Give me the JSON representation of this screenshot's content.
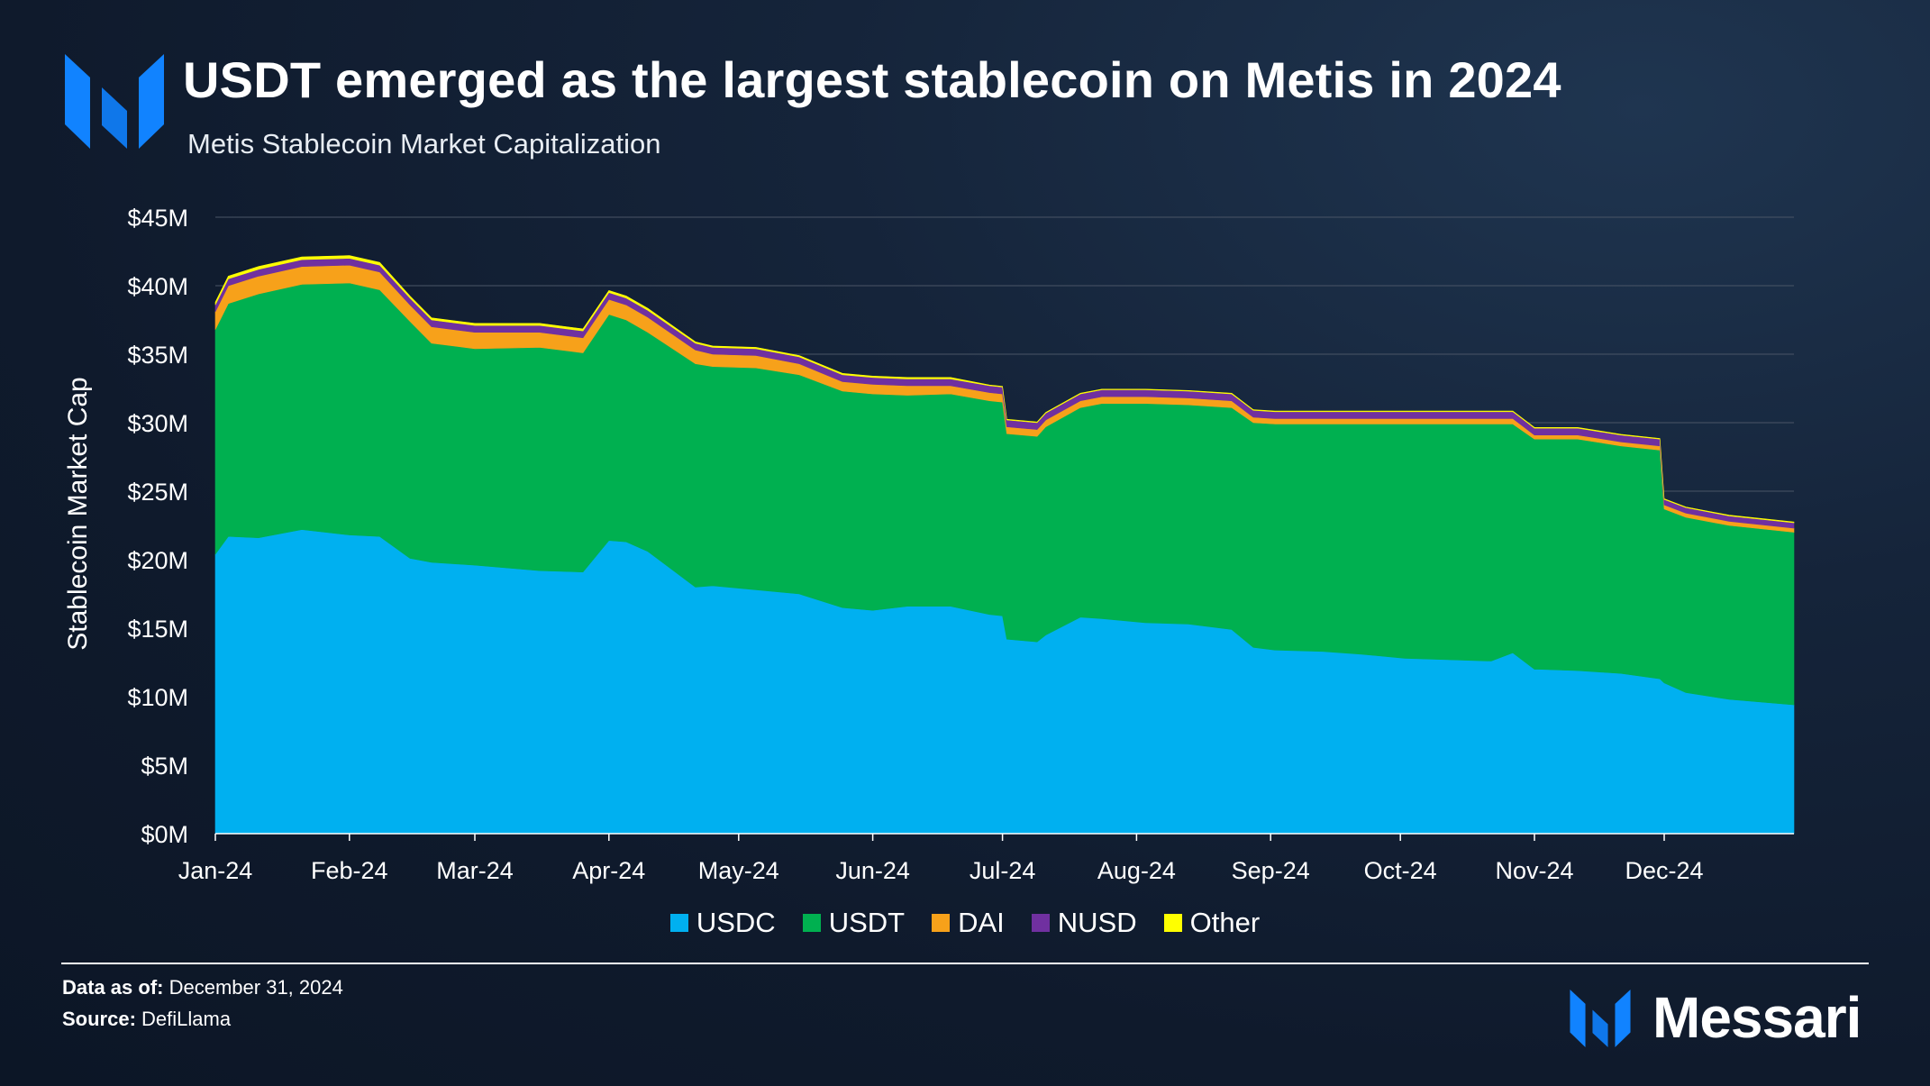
{
  "header": {
    "title": "USDT emerged as the largest stablecoin on Metis in 2024",
    "subtitle": "Metis Stablecoin Market Capitalization",
    "logo_icon": "messari-m-icon"
  },
  "footer": {
    "data_as_of_label": "Data as of:",
    "data_as_of_value": "December 31, 2024",
    "source_label": "Source:",
    "source_value": "DefiLlama",
    "brand": "Messari"
  },
  "chart_data": {
    "type": "area",
    "stacked": true,
    "title": "Metis Stablecoin Market Capitalization",
    "ylabel": "Stablecoin Market Cap",
    "xlabel": "",
    "ylim": [
      0,
      45
    ],
    "y_unit": "$M",
    "y_ticks": [
      "$0M",
      "$5M",
      "$10M",
      "$15M",
      "$20M",
      "$25M",
      "$30M",
      "$35M",
      "$40M",
      "$45M"
    ],
    "x_ticks": [
      "Jan-24",
      "Feb-24",
      "Mar-24",
      "Apr-24",
      "May-24",
      "Jun-24",
      "Jul-24",
      "Aug-24",
      "Sep-24",
      "Oct-24",
      "Nov-24",
      "Dec-24"
    ],
    "grid": true,
    "legend_position": "bottom-center",
    "x_day_of_year": [
      0,
      3,
      10,
      20,
      31,
      38,
      45,
      50,
      60,
      75,
      85,
      91,
      95,
      100,
      111,
      115,
      125,
      135,
      145,
      152,
      160,
      170,
      179,
      182,
      183,
      190,
      192,
      200,
      205,
      215,
      225,
      235,
      240,
      245,
      256,
      265,
      275,
      285,
      295,
      300,
      305,
      306,
      315,
      325,
      334,
      335,
      340,
      350,
      365
    ],
    "series": [
      {
        "name": "USDC",
        "color": "#00b0f0",
        "values": [
          20.4,
          21.7,
          21.6,
          22.2,
          21.8,
          21.7,
          20.1,
          19.8,
          19.6,
          19.2,
          19.1,
          21.4,
          21.3,
          20.6,
          18.0,
          18.1,
          17.8,
          17.5,
          16.5,
          16.3,
          16.6,
          16.6,
          16.0,
          15.9,
          14.2,
          14.0,
          14.5,
          15.8,
          15.7,
          15.4,
          15.3,
          14.9,
          13.6,
          13.4,
          13.3,
          13.1,
          12.8,
          12.7,
          12.6,
          13.2,
          12.0,
          12.0,
          11.9,
          11.7,
          11.3,
          11.0,
          10.3,
          9.8,
          9.4
        ]
      },
      {
        "name": "USDT",
        "color": "#00b050",
        "values": [
          16.4,
          17.0,
          17.8,
          17.9,
          18.4,
          18.0,
          17.3,
          16.0,
          15.8,
          16.3,
          16.0,
          16.5,
          16.2,
          16.0,
          16.3,
          16.0,
          16.2,
          16.0,
          15.8,
          15.8,
          15.4,
          15.5,
          15.6,
          15.6,
          15.0,
          15.0,
          15.2,
          15.3,
          15.7,
          16.0,
          16.0,
          16.2,
          16.4,
          16.5,
          16.6,
          16.8,
          17.1,
          17.2,
          17.3,
          16.7,
          16.8,
          16.8,
          16.9,
          16.6,
          16.7,
          12.7,
          12.8,
          12.7,
          12.6
        ]
      },
      {
        "name": "DAI",
        "color": "#f7a11a",
        "values": [
          1.3,
          1.3,
          1.3,
          1.3,
          1.3,
          1.3,
          1.2,
          1.2,
          1.2,
          1.1,
          1.1,
          1.1,
          1.1,
          1.1,
          1.0,
          0.9,
          0.9,
          0.8,
          0.7,
          0.7,
          0.7,
          0.6,
          0.6,
          0.6,
          0.5,
          0.5,
          0.5,
          0.5,
          0.5,
          0.5,
          0.5,
          0.5,
          0.4,
          0.4,
          0.4,
          0.4,
          0.4,
          0.4,
          0.4,
          0.4,
          0.3,
          0.3,
          0.3,
          0.3,
          0.3,
          0.3,
          0.3,
          0.3,
          0.3
        ]
      },
      {
        "name": "NUSD",
        "color": "#7030a0",
        "values": [
          0.5,
          0.5,
          0.5,
          0.5,
          0.5,
          0.5,
          0.5,
          0.5,
          0.5,
          0.5,
          0.5,
          0.5,
          0.5,
          0.5,
          0.5,
          0.5,
          0.5,
          0.5,
          0.5,
          0.5,
          0.5,
          0.5,
          0.5,
          0.5,
          0.5,
          0.5,
          0.5,
          0.5,
          0.5,
          0.5,
          0.5,
          0.5,
          0.5,
          0.5,
          0.5,
          0.5,
          0.5,
          0.5,
          0.5,
          0.5,
          0.5,
          0.5,
          0.5,
          0.5,
          0.5,
          0.4,
          0.4,
          0.4,
          0.4
        ]
      },
      {
        "name": "Other",
        "color": "#ffff00",
        "values": [
          0.2,
          0.2,
          0.2,
          0.2,
          0.2,
          0.2,
          0.15,
          0.15,
          0.15,
          0.15,
          0.15,
          0.15,
          0.15,
          0.15,
          0.1,
          0.1,
          0.1,
          0.1,
          0.1,
          0.1,
          0.1,
          0.1,
          0.05,
          0.05,
          0.05,
          0.05,
          0.05,
          0.05,
          0.05,
          0.05,
          0.05,
          0.05,
          0.05,
          0.05,
          0.05,
          0.05,
          0.05,
          0.05,
          0.05,
          0.05,
          0.05,
          0.05,
          0.05,
          0.05,
          0.05,
          0.05,
          0.05,
          0.05,
          0.05
        ]
      }
    ]
  }
}
